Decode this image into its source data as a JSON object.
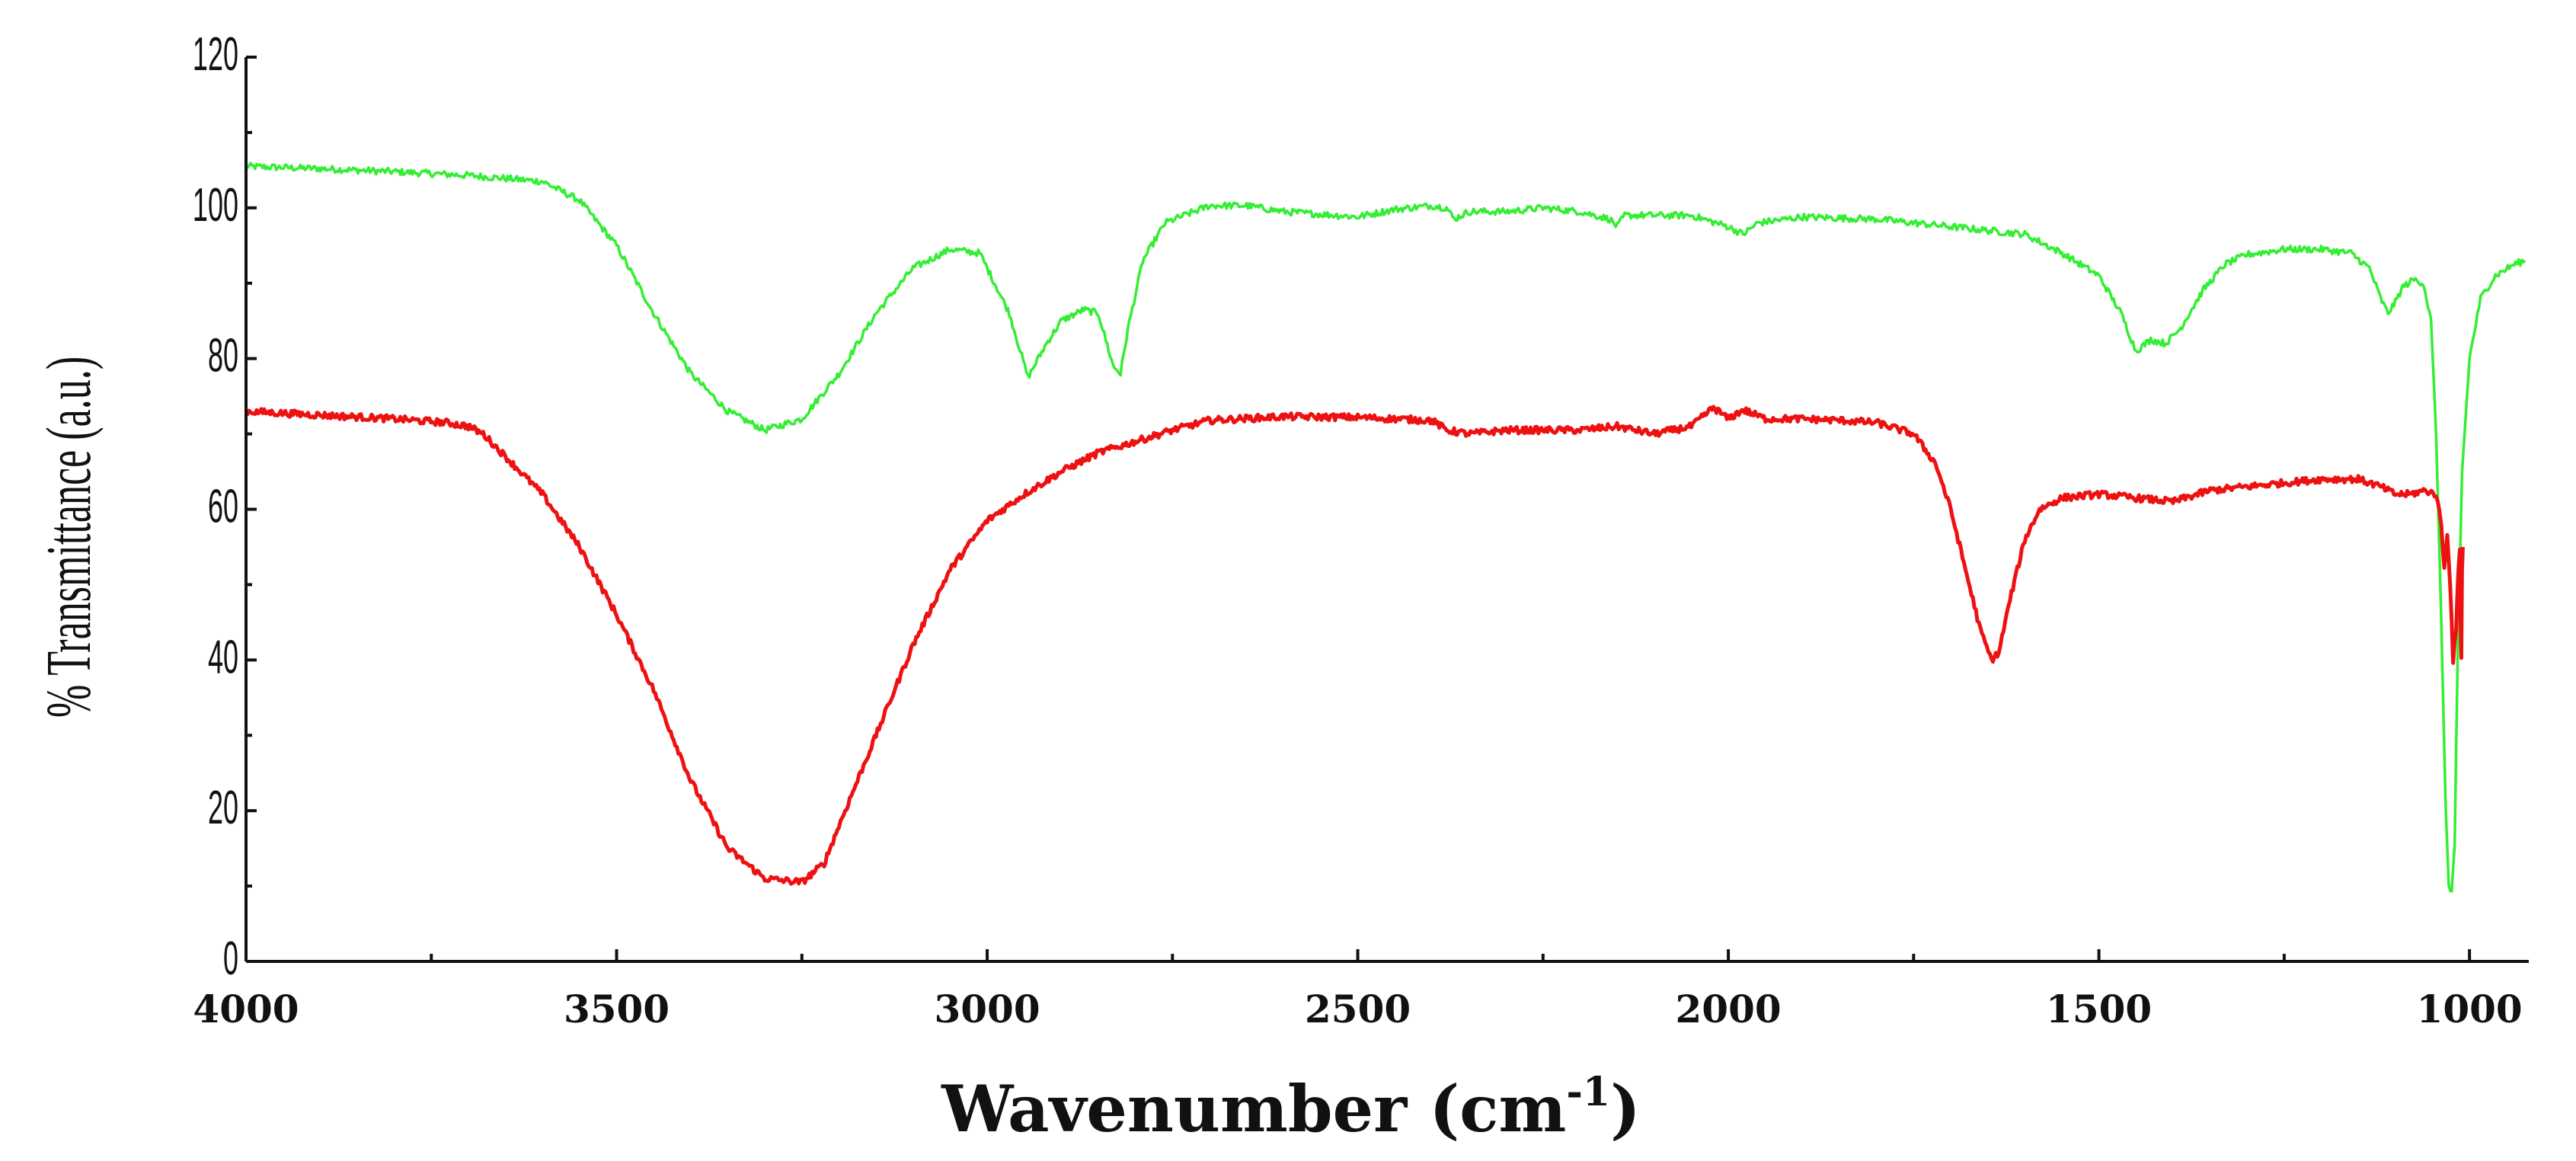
{
  "chart_data": {
    "type": "line",
    "title": "",
    "xlabel": "Wavenumber (cm",
    "xlabel_sup": "-1",
    "xlabel_close": ")",
    "ylabel": "% Transmittance (a.u.)",
    "xlim": [
      4000,
      920
    ],
    "ylim": [
      0,
      120
    ],
    "x_ticks": [
      4000,
      3500,
      3000,
      2500,
      2000,
      1500,
      1000
    ],
    "x_tick_labels": [
      "4000",
      "3500",
      "3000",
      "2500",
      "2000",
      "1500",
      "1000"
    ],
    "y_ticks": [
      0,
      20,
      40,
      60,
      80,
      100,
      120
    ],
    "y_tick_labels": [
      "0",
      "20",
      "40",
      "60",
      "80",
      "100",
      "120"
    ],
    "grid": false,
    "legend": "none",
    "series": [
      {
        "name": "green spectrum",
        "color": "#33ee33",
        "noise": 0.45,
        "points": [
          [
            4000,
            105.5
          ],
          [
            3900,
            105.2
          ],
          [
            3800,
            104.8
          ],
          [
            3700,
            104.3
          ],
          [
            3600,
            103.5
          ],
          [
            3550,
            101
          ],
          [
            3500,
            95
          ],
          [
            3450,
            86
          ],
          [
            3400,
            78
          ],
          [
            3350,
            73
          ],
          [
            3300,
            70.5
          ],
          [
            3250,
            72
          ],
          [
            3200,
            78
          ],
          [
            3150,
            86
          ],
          [
            3100,
            92
          ],
          [
            3050,
            94.5
          ],
          [
            3010,
            94
          ],
          [
            2990,
            90
          ],
          [
            2970,
            86
          ],
          [
            2945,
            77.5
          ],
          [
            2920,
            82
          ],
          [
            2900,
            85
          ],
          [
            2870,
            86.5
          ],
          [
            2850,
            86
          ],
          [
            2830,
            79
          ],
          [
            2820,
            78
          ],
          [
            2810,
            84
          ],
          [
            2790,
            93
          ],
          [
            2760,
            98
          ],
          [
            2700,
            100.3
          ],
          [
            2650,
            100.3
          ],
          [
            2600,
            99.5
          ],
          [
            2500,
            98.8
          ],
          [
            2450,
            99.8
          ],
          [
            2400,
            100.3
          ],
          [
            2380,
            100
          ],
          [
            2370,
            98.5
          ],
          [
            2350,
            99.5
          ],
          [
            2300,
            99.5
          ],
          [
            2250,
            100
          ],
          [
            2200,
            99.5
          ],
          [
            2160,
            98.5
          ],
          [
            2150,
            97.5
          ],
          [
            2140,
            99
          ],
          [
            2100,
            99
          ],
          [
            2050,
            99
          ],
          [
            2000,
            97.5
          ],
          [
            1980,
            96.5
          ],
          [
            1960,
            98
          ],
          [
            1900,
            98.8
          ],
          [
            1800,
            98.5
          ],
          [
            1700,
            97.5
          ],
          [
            1600,
            96.5
          ],
          [
            1550,
            94
          ],
          [
            1500,
            91
          ],
          [
            1470,
            86
          ],
          [
            1450,
            81
          ],
          [
            1430,
            82.5
          ],
          [
            1410,
            82
          ],
          [
            1390,
            84
          ],
          [
            1360,
            89
          ],
          [
            1330,
            92.5
          ],
          [
            1300,
            93.8
          ],
          [
            1250,
            94.5
          ],
          [
            1200,
            94.5
          ],
          [
            1160,
            94
          ],
          [
            1135,
            92
          ],
          [
            1120,
            88
          ],
          [
            1110,
            86
          ],
          [
            1100,
            87.5
          ],
          [
            1090,
            89.5
          ],
          [
            1075,
            90.5
          ],
          [
            1062,
            90
          ],
          [
            1052,
            85
          ],
          [
            1045,
            70
          ],
          [
            1038,
            45
          ],
          [
            1032,
            20
          ],
          [
            1028,
            10
          ],
          [
            1024,
            9
          ],
          [
            1020,
            15
          ],
          [
            1016,
            40
          ],
          [
            1010,
            65
          ],
          [
            1000,
            80
          ],
          [
            985,
            88
          ],
          [
            965,
            91
          ],
          [
            940,
            92.5
          ],
          [
            925,
            93
          ]
        ]
      },
      {
        "name": "red spectrum",
        "color": "#ee1111",
        "noise": 0.45,
        "points": [
          [
            4000,
            73
          ],
          [
            3900,
            72.5
          ],
          [
            3800,
            72
          ],
          [
            3730,
            71.5
          ],
          [
            3700,
            71
          ],
          [
            3680,
            70
          ],
          [
            3650,
            67
          ],
          [
            3600,
            62
          ],
          [
            3550,
            55
          ],
          [
            3500,
            46
          ],
          [
            3450,
            36
          ],
          [
            3400,
            24
          ],
          [
            3350,
            15
          ],
          [
            3300,
            11
          ],
          [
            3250,
            10.5
          ],
          [
            3220,
            13
          ],
          [
            3200,
            18
          ],
          [
            3150,
            30
          ],
          [
            3100,
            42
          ],
          [
            3050,
            52
          ],
          [
            3000,
            58.5
          ],
          [
            2950,
            62
          ],
          [
            2900,
            65
          ],
          [
            2850,
            67.5
          ],
          [
            2800,
            69
          ],
          [
            2750,
            70.5
          ],
          [
            2700,
            71.8
          ],
          [
            2600,
            72.3
          ],
          [
            2500,
            72.2
          ],
          [
            2400,
            71.8
          ],
          [
            2380,
            70.5
          ],
          [
            2350,
            70
          ],
          [
            2300,
            70.5
          ],
          [
            2250,
            70.5
          ],
          [
            2200,
            70.5
          ],
          [
            2150,
            71
          ],
          [
            2100,
            70
          ],
          [
            2050,
            71
          ],
          [
            2020,
            73.5
          ],
          [
            2000,
            72
          ],
          [
            1980,
            73.2
          ],
          [
            1950,
            72
          ],
          [
            1900,
            72
          ],
          [
            1850,
            71.8
          ],
          [
            1800,
            71.5
          ],
          [
            1750,
            70
          ],
          [
            1720,
            66
          ],
          [
            1700,
            60
          ],
          [
            1680,
            52
          ],
          [
            1660,
            44
          ],
          [
            1645,
            40
          ],
          [
            1635,
            41
          ],
          [
            1620,
            48
          ],
          [
            1600,
            56
          ],
          [
            1580,
            60
          ],
          [
            1550,
            61.5
          ],
          [
            1500,
            62
          ],
          [
            1450,
            61.5
          ],
          [
            1400,
            61
          ],
          [
            1350,
            62.5
          ],
          [
            1300,
            63
          ],
          [
            1250,
            63.5
          ],
          [
            1200,
            64
          ],
          [
            1150,
            64
          ],
          [
            1120,
            63
          ],
          [
            1100,
            62
          ],
          [
            1080,
            62
          ],
          [
            1060,
            62.5
          ],
          [
            1045,
            62
          ],
          [
            1038,
            58
          ],
          [
            1034,
            52
          ],
          [
            1030,
            57
          ],
          [
            1026,
            50
          ],
          [
            1022,
            40
          ],
          [
            1018,
            44
          ],
          [
            1015,
            52
          ],
          [
            1013,
            55
          ],
          [
            1012,
            45
          ],
          [
            1011,
            40
          ],
          [
            1010,
            52
          ],
          [
            1009,
            55
          ]
        ]
      }
    ]
  }
}
